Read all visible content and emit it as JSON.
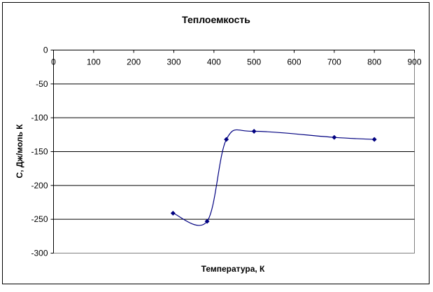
{
  "chart_data": {
    "type": "scatter",
    "title": "Теплоемкость",
    "xlabel": "Температура, К",
    "ylabel": "С, Дж/моль К",
    "xlim": [
      0,
      900
    ],
    "ylim": [
      -300,
      0
    ],
    "x_ticks": [
      0,
      100,
      200,
      300,
      400,
      500,
      600,
      700,
      800,
      900
    ],
    "y_ticks": [
      0,
      -50,
      -100,
      -150,
      -200,
      -250,
      -300
    ],
    "x_tick_labels": [
      "0",
      "100",
      "200",
      "300",
      "400",
      "500",
      "600",
      "700",
      "800",
      "900"
    ],
    "y_tick_labels": [
      "0",
      "-50",
      "-100",
      "-150",
      "-200",
      "-250",
      "-300"
    ],
    "grid": {
      "horizontal": true,
      "vertical": false
    },
    "legend": "none",
    "smoothed_line": true,
    "series": [
      {
        "color": "#000080",
        "marker": "diamond",
        "x": [
          298,
          383,
          431,
          500,
          700,
          800
        ],
        "y": [
          -241,
          -253,
          -132,
          -120,
          -129,
          -132
        ]
      }
    ]
  }
}
